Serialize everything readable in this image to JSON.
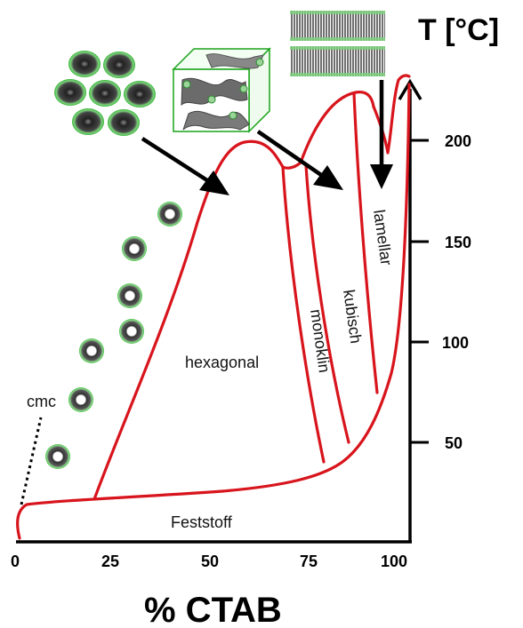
{
  "diagram": {
    "y_axis_title": "T [°C]",
    "x_axis_title": "% CTAB",
    "x_ticks": [
      "0",
      "25",
      "50",
      "75",
      "100"
    ],
    "y_ticks": [
      "50",
      "100",
      "150",
      "200"
    ],
    "phases": {
      "hexagonal": "hexagonal",
      "monoklin": "monoklin",
      "kubisch": "kubisch",
      "lamellar": "lamellar",
      "feststoff": "Feststoff"
    },
    "cmc_label": "cmc",
    "colors": {
      "boundary": "#d8141c",
      "micelle_halo": "#3fbf3f",
      "axis": "#000000"
    },
    "icons": [
      "hexagonal-rod-bundle-icon",
      "cubic-bicontinuous-structure-icon",
      "lamellar-bilayer-icon",
      "spherical-micelle-icon"
    ]
  }
}
